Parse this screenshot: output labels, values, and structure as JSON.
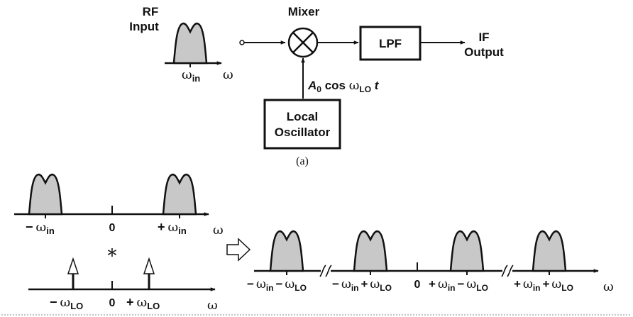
{
  "top": {
    "rf_input_lines": [
      "RF",
      "Input"
    ],
    "mixer_label": "Mixer",
    "lpf_label": "LPF",
    "if_output_lines": [
      "IF",
      "Output"
    ],
    "lo_box_lines": [
      "Local",
      "Oscillator"
    ],
    "lo_signal": {
      "amp": "A",
      "amp_sub": "0",
      "cos": " cos ",
      "omega": "ω",
      "omega_sub": "LO",
      "t": " t"
    },
    "rf_axis_tick": {
      "omega": "ω",
      "sub": "in"
    },
    "rf_axis_label": "ω",
    "caption": "(a)"
  },
  "spectrum_in": {
    "neg_tick": {
      "sign": "−",
      "omega": "ω",
      "sub": "in"
    },
    "zero_tick": "0",
    "pos_tick": {
      "sign": "+",
      "omega": "ω",
      "sub": "in"
    },
    "axis_label": "ω"
  },
  "convolution_symbol": "∗",
  "arrow_symbol": "⇨",
  "spectrum_lo": {
    "neg_tick": {
      "sign": "−",
      "omega": "ω",
      "sub": "LO"
    },
    "zero_tick": "0",
    "pos_tick": {
      "sign": "+",
      "omega": "ω",
      "sub": "LO"
    },
    "axis_label": "ω"
  },
  "spectrum_out": {
    "labels": [
      {
        "s1": "−",
        "sub1": "in",
        "s2": "−",
        "sub2": "LO"
      },
      {
        "s1": "−",
        "sub1": "in",
        "s2": "+",
        "sub2": "LO"
      },
      {
        "s1": "+",
        "sub1": "in",
        "s2": "−",
        "sub2": "LO"
      },
      {
        "s1": "+",
        "sub1": "in",
        "s2": "+",
        "sub2": "LO"
      }
    ],
    "omega": "ω",
    "zero_tick": "0",
    "axis_label": "ω"
  },
  "colors": {
    "shade": "#c8c8c8",
    "line": "#111111"
  }
}
